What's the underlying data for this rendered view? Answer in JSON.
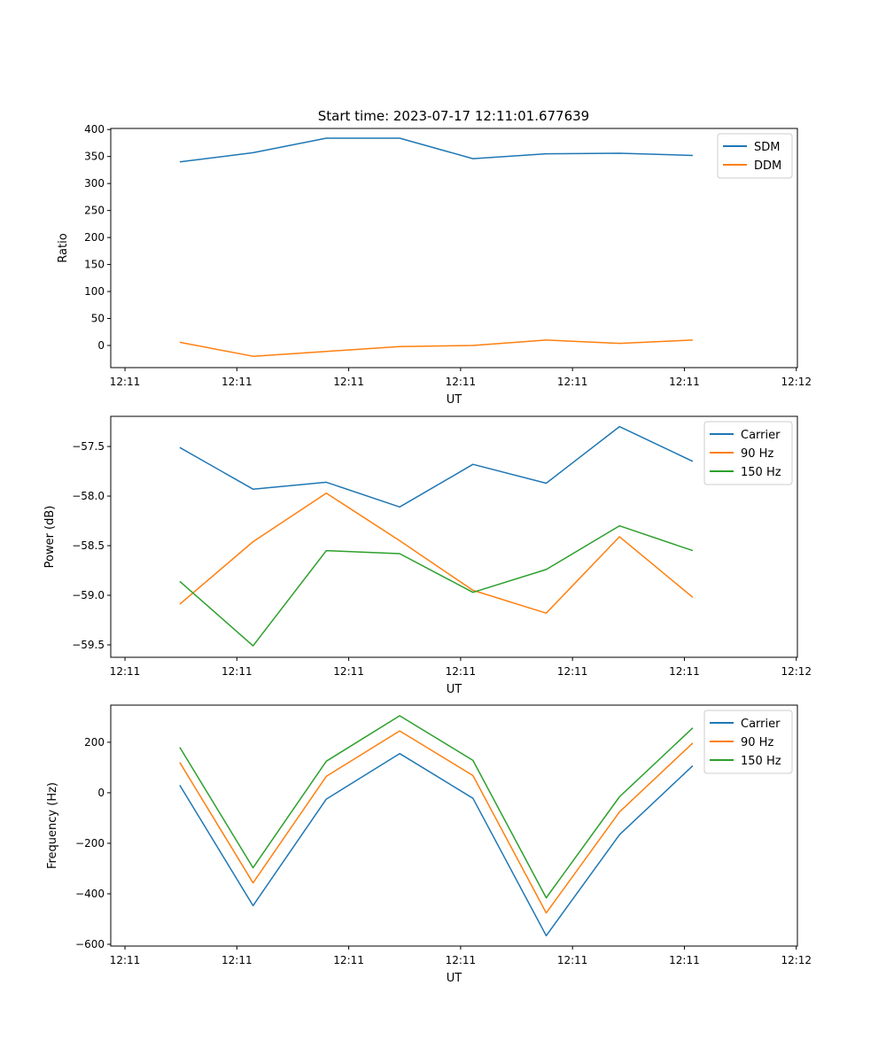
{
  "title": "Start time: 2023-07-17 12:11:01.677639",
  "chart_data": [
    {
      "type": "line",
      "title": "Start time: 2023-07-17 12:11:01.677639",
      "xlabel": "UT",
      "ylabel": "Ratio",
      "x": [
        0.49,
        1.145,
        1.8,
        2.455,
        3.11,
        3.765,
        4.42,
        5.075
      ],
      "xlim": [
        -0.127,
        6.01
      ],
      "xticks": [
        0,
        1,
        2,
        3,
        4,
        5,
        6
      ],
      "xtick_labels": [
        "12:11",
        "12:11",
        "12:11",
        "12:11",
        "12:11",
        "12:11",
        "12:12"
      ],
      "ylim": [
        -41,
        402
      ],
      "yticks": [
        0,
        50,
        100,
        150,
        200,
        250,
        300,
        350,
        400
      ],
      "ytick_labels": [
        "0",
        "50",
        "100",
        "150",
        "200",
        "250",
        "300",
        "350",
        "400"
      ],
      "legend": "top-right",
      "series": [
        {
          "name": "SDM",
          "color": "#1f77b4",
          "values": [
            340,
            357,
            384,
            384,
            346,
            355,
            356,
            352
          ]
        },
        {
          "name": "DDM",
          "color": "#ff7f0e",
          "values": [
            6,
            -20,
            -11,
            -2,
            0,
            10,
            4,
            10
          ]
        }
      ]
    },
    {
      "type": "line",
      "xlabel": "UT",
      "ylabel": "Power (dB)",
      "x": [
        0.49,
        1.145,
        1.8,
        2.455,
        3.11,
        3.765,
        4.42,
        5.075
      ],
      "xlim": [
        -0.127,
        6.01
      ],
      "xticks": [
        0,
        1,
        2,
        3,
        4,
        5,
        6
      ],
      "xtick_labels": [
        "12:11",
        "12:11",
        "12:11",
        "12:11",
        "12:11",
        "12:11",
        "12:12"
      ],
      "ylim": [
        -59.625,
        -57.196
      ],
      "yticks": [
        -59.5,
        -59.0,
        -58.5,
        -58.0,
        -57.5
      ],
      "ytick_labels": [
        "−59.5",
        "−59.0",
        "−58.5",
        "−58.0",
        "−57.5"
      ],
      "legend": "top-right",
      "series": [
        {
          "name": "Carrier",
          "color": "#1f77b4",
          "values": [
            -57.51,
            -57.93,
            -57.86,
            -58.11,
            -57.68,
            -57.87,
            -57.3,
            -57.65
          ]
        },
        {
          "name": "90 Hz",
          "color": "#ff7f0e",
          "values": [
            -59.09,
            -58.46,
            -57.97,
            -58.45,
            -58.95,
            -59.18,
            -58.41,
            -59.02
          ]
        },
        {
          "name": "150 Hz",
          "color": "#2ca02c",
          "values": [
            -58.86,
            -59.51,
            -58.55,
            -58.58,
            -58.97,
            -58.74,
            -58.3,
            -58.55
          ]
        }
      ]
    },
    {
      "type": "line",
      "xlabel": "UT",
      "ylabel": "Frequency (Hz)",
      "x": [
        0.49,
        1.145,
        1.8,
        2.455,
        3.11,
        3.765,
        4.42,
        5.075
      ],
      "xlim": [
        -0.127,
        6.01
      ],
      "xticks": [
        0,
        1,
        2,
        3,
        4,
        5,
        6
      ],
      "xtick_labels": [
        "12:11",
        "12:11",
        "12:11",
        "12:11",
        "12:11",
        "12:11",
        "12:12"
      ],
      "ylim": [
        -607,
        347
      ],
      "yticks": [
        -600,
        -400,
        -200,
        0,
        200
      ],
      "ytick_labels": [
        "−600",
        "−400",
        "−200",
        "0",
        "200"
      ],
      "legend": "top-right",
      "series": [
        {
          "name": "Carrier",
          "color": "#1f77b4",
          "values": [
            30,
            -447,
            -25,
            155,
            -22,
            -566,
            -166,
            107
          ]
        },
        {
          "name": "90 Hz",
          "color": "#ff7f0e",
          "values": [
            120,
            -357,
            65,
            245,
            68,
            -476,
            -76,
            197
          ]
        },
        {
          "name": "150 Hz",
          "color": "#2ca02c",
          "values": [
            180,
            -297,
            125,
            305,
            128,
            -416,
            -16,
            257
          ]
        }
      ]
    }
  ]
}
